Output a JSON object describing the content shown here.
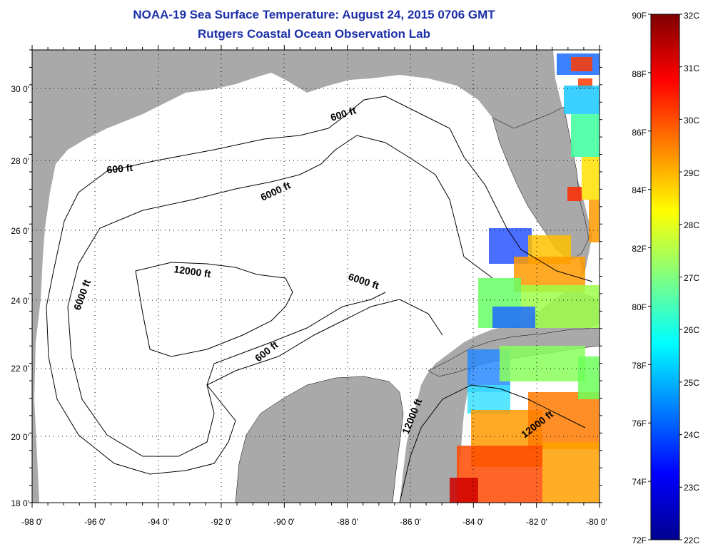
{
  "header": {
    "title": "NOAA-19 Sea Surface Temperature:  August 24, 2015 0706 GMT",
    "subtitle": "Rutgers Coastal Ocean Observation Lab"
  },
  "map": {
    "lon_ticks": [
      "-98 0'",
      "-96 0'",
      "-94 0'",
      "-92 0'",
      "-90 0'",
      "-88 0'",
      "-86 0'",
      "-84 0'",
      "-82 0'",
      "-80 0'"
    ],
    "lat_ticks": [
      "30 0'",
      "28 0'",
      "26 0'",
      "24 0'",
      "22 0'",
      "20 0'",
      "18 0'"
    ],
    "contour_labels": [
      "600 ft",
      "600 ft",
      "6000 ft",
      "6000 ft",
      "6000 ft",
      "12000 ft",
      "600 ft",
      "12000 ft",
      "12000 ft"
    ],
    "land_color": "#a9a9a9",
    "ocean_color": "#ffffff"
  },
  "colorbar": {
    "f_labels": [
      "90F",
      "88F",
      "86F",
      "84F",
      "82F",
      "80F",
      "78F",
      "76F",
      "74F",
      "72F"
    ],
    "c_labels": [
      "32C",
      "31C",
      "30C",
      "29C",
      "28C",
      "27C",
      "26C",
      "25C",
      "24C",
      "23C",
      "22C"
    ],
    "colors": [
      "#7f0000",
      "#ff0000",
      "#ff8000",
      "#ffff00",
      "#80ff80",
      "#00ffff",
      "#0080ff",
      "#0000ff",
      "#00008f"
    ]
  }
}
